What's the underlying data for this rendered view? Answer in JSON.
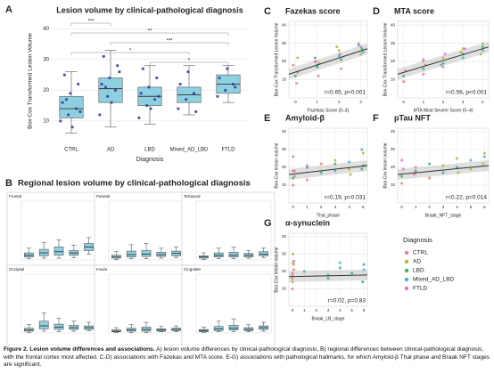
{
  "figure": {
    "caption_title": "Figure 2. Lesion volume differences and associations.",
    "caption_text": "A) lesion volume differences by clinical-pathological diagnosis, B) regional differences between clinical-pathological diagnosis, with the frontal cortex most affected. C-D) associations with Fazekas and MTA score. E-G) associations with pathological hallmarks, for which Amyloid-β Thal phase and Braak NFT stages are significant.",
    "group_b": {
      "panel": "B",
      "title": "Regional lesion volume by clinical-pathological diagnosis"
    }
  },
  "legend": {
    "title": "Diagnosis",
    "series": [
      {
        "name": "CTRL",
        "color": "#f08080"
      },
      {
        "name": "AD",
        "color": "#b5b535"
      },
      {
        "name": "LBD",
        "color": "#3cb371"
      },
      {
        "name": "Mixed_AD_LBD",
        "color": "#45b0d8"
      },
      {
        "name": "FTLD",
        "color": "#e070e0"
      }
    ]
  },
  "chart_data": [
    {
      "type": "box",
      "panel": "A",
      "title": "Lesion volume by clinical-pathological diagnosis",
      "y_label": "Box-Cox Transformed Lesion Volume",
      "x_label": "Diagnosis",
      "categories": [
        "CTRL",
        "AD",
        "LBD",
        "Mixed_AD_LBD",
        "FTLD"
      ],
      "color": "#8fd0e0",
      "point_color": "#2e3a9e",
      "boxes": [
        [
          6,
          11,
          14,
          18,
          26
        ],
        [
          8,
          16,
          20.5,
          24,
          33
        ],
        [
          9,
          15,
          18,
          21,
          28
        ],
        [
          12,
          16,
          18.5,
          21,
          28
        ],
        [
          16,
          19,
          22,
          25,
          28
        ]
      ],
      "points": [
        [
          10,
          12,
          14,
          16,
          19,
          22,
          25,
          8,
          13,
          17
        ],
        [
          12,
          18,
          20,
          22,
          24,
          28,
          31,
          16,
          26,
          21
        ],
        [
          11,
          15,
          17,
          19,
          21,
          24,
          27,
          14,
          18
        ],
        [
          14,
          17,
          19,
          22,
          26,
          13
        ],
        [
          18,
          20,
          22,
          24,
          27,
          21
        ]
      ],
      "ylim": [
        3,
        43
      ],
      "yticks": [
        10,
        20,
        30,
        40
      ],
      "grid": true,
      "significance": [
        {
          "pair": [
            "CTRL",
            "AD"
          ],
          "label": "***"
        },
        {
          "pair": [
            "CTRL",
            "FTLD"
          ],
          "label": "**"
        },
        {
          "pair": [
            "AD",
            "FTLD"
          ],
          "label": "***"
        },
        {
          "pair": [
            "CTRL",
            "Mixed_AD_LBD"
          ],
          "label": "*"
        },
        {
          "pair": [
            "LBD",
            "FTLD"
          ],
          "label": "*"
        }
      ]
    },
    {
      "type": "box",
      "title": "Frontal",
      "color": "#8fd0e0",
      "ylim": [
        0,
        100
      ],
      "boxes": [
        [
          2,
          5,
          8,
          12,
          20
        ],
        [
          3,
          7,
          12,
          18,
          30
        ],
        [
          3,
          8,
          14,
          22,
          34
        ],
        [
          4,
          8,
          12,
          16,
          25
        ],
        [
          10,
          16,
          22,
          28,
          38
        ]
      ]
    },
    {
      "type": "box",
      "title": "Parietal",
      "color": "#8fd0e0",
      "ylim": [
        0,
        100
      ],
      "boxes": [
        [
          1,
          3,
          5,
          8,
          14
        ],
        [
          2,
          5,
          9,
          15,
          26
        ],
        [
          2,
          6,
          10,
          16,
          28
        ],
        [
          3,
          6,
          9,
          13,
          20
        ],
        [
          4,
          7,
          11,
          15,
          22
        ]
      ]
    },
    {
      "type": "box",
      "title": "Temporal",
      "color": "#8fd0e0",
      "ylim": [
        0,
        100
      ],
      "boxes": [
        [
          1,
          3,
          5,
          7,
          12
        ],
        [
          2,
          5,
          8,
          12,
          20
        ],
        [
          2,
          5,
          8,
          13,
          22
        ],
        [
          3,
          5,
          8,
          11,
          16
        ],
        [
          4,
          7,
          10,
          14,
          20
        ]
      ]
    },
    {
      "type": "box",
      "title": "Occipital",
      "color": "#8fd0e0",
      "ylim": [
        0,
        100
      ],
      "boxes": [
        [
          1,
          3,
          5,
          8,
          14
        ],
        [
          3,
          7,
          12,
          20,
          34
        ],
        [
          2,
          6,
          10,
          15,
          25
        ],
        [
          3,
          6,
          9,
          13,
          20
        ],
        [
          4,
          6,
          9,
          12,
          18
        ]
      ]
    },
    {
      "type": "box",
      "title": "Insula",
      "color": "#8fd0e0",
      "ylim": [
        0,
        100
      ],
      "boxes": [
        [
          1,
          2,
          3,
          5,
          9
        ],
        [
          1,
          3,
          5,
          8,
          14
        ],
        [
          1,
          3,
          6,
          10,
          18
        ],
        [
          2,
          3,
          5,
          7,
          11
        ],
        [
          2,
          4,
          6,
          8,
          12
        ]
      ]
    },
    {
      "type": "box",
      "title": "Cingulate",
      "color": "#8fd0e0",
      "ylim": [
        0,
        100
      ],
      "boxes": [
        [
          1,
          2,
          4,
          6,
          10
        ],
        [
          2,
          4,
          7,
          11,
          20
        ],
        [
          2,
          5,
          8,
          13,
          24
        ],
        [
          2,
          4,
          6,
          9,
          14
        ],
        [
          3,
          6,
          9,
          12,
          18
        ]
      ]
    },
    {
      "type": "scatter",
      "panel": "C",
      "title": "Fazekas score",
      "y_label": "Box-Cox Transformed Lesion Volume",
      "x_label": "Fazekas Score (0–3)",
      "annotation": "r=0.65, p<0.001",
      "xlim": [
        -0.3,
        3.3
      ],
      "xticks": [
        0,
        1,
        2,
        3
      ],
      "ylim": [
        0,
        42
      ],
      "yticks": [
        10,
        20,
        30,
        40
      ],
      "grid": true,
      "fit": {
        "x": [
          -0.3,
          3.3
        ],
        "y": [
          13,
          27
        ]
      },
      "points": [
        {
          "x": [
            0.05,
            0.1,
            -0.1,
            1.05,
            0.95,
            2.1
          ],
          "y": [
            8,
            14,
            18,
            12,
            20,
            16
          ]
        },
        {
          "x": [
            0.1,
            1.1,
            2.0,
            2.9,
            3.0,
            1.9
          ],
          "y": [
            22,
            19,
            26,
            30,
            24,
            28
          ]
        },
        {
          "x": [
            0,
            1,
            2.1,
            3.05,
            0.9
          ],
          "y": [
            12,
            17,
            21,
            27,
            22
          ]
        },
        {
          "x": [
            1,
            2,
            3.1,
            2.9
          ],
          "y": [
            18,
            23,
            25,
            29
          ]
        },
        {
          "x": [
            0.9,
            2.05,
            3
          ],
          "y": [
            20,
            24,
            28
          ]
        }
      ]
    },
    {
      "type": "scatter",
      "panel": "D",
      "title": "MTA score",
      "y_label": "Box-Cox Transformed Lesion Volume",
      "x_label": "MTA Most Severe Score (0–4)",
      "annotation": "r=0.56, p<0.001",
      "xlim": [
        -0.3,
        4.3
      ],
      "xticks": [
        0,
        1,
        2,
        3,
        4
      ],
      "ylim": [
        0,
        42
      ],
      "yticks": [
        10,
        20,
        30,
        40
      ],
      "grid": true,
      "fit": {
        "x": [
          -0.3,
          4.3
        ],
        "y": [
          13,
          28
        ]
      },
      "points": [
        {
          "x": [
            0,
            0.1,
            1,
            1.1,
            2
          ],
          "y": [
            9,
            15,
            13,
            18,
            17
          ]
        },
        {
          "x": [
            1,
            2,
            3,
            4,
            3.9,
            2.9
          ],
          "y": [
            20,
            22,
            27,
            30,
            24,
            25
          ]
        },
        {
          "x": [
            0,
            1,
            2,
            3,
            4
          ],
          "y": [
            12,
            16,
            19,
            24,
            28
          ]
        },
        {
          "x": [
            1.9,
            3,
            4
          ],
          "y": [
            18,
            22,
            26
          ]
        },
        {
          "x": [
            1,
            2.1,
            3.1
          ],
          "y": [
            21,
            24,
            27
          ]
        }
      ]
    },
    {
      "type": "scatter",
      "panel": "E",
      "title": "Amyloid-β",
      "y_label": "Box-Cox lesion volume",
      "x_label": "Thal_phase",
      "annotation": "r=0.19, p=0.031",
      "xlim": [
        -0.3,
        5.3
      ],
      "xticks": [
        0,
        1,
        2,
        3,
        4,
        5
      ],
      "ylim": [
        0,
        42
      ],
      "yticks": [
        10,
        20,
        30,
        40
      ],
      "grid": true,
      "fit": {
        "x": [
          -0.3,
          5.3
        ],
        "y": [
          16,
          21
        ]
      },
      "points": [
        {
          "x": [
            0,
            0.1,
            0,
            1,
            2
          ],
          "y": [
            10,
            15,
            18,
            13,
            22
          ]
        },
        {
          "x": [
            3,
            4,
            5,
            5.1,
            4.1
          ],
          "y": [
            24,
            19,
            28,
            21,
            16
          ]
        },
        {
          "x": [
            0,
            1,
            2,
            3,
            4.9
          ],
          "y": [
            14,
            20,
            17,
            22,
            19
          ]
        },
        {
          "x": [
            3,
            4,
            5,
            4.9
          ],
          "y": [
            18,
            23,
            21,
            30
          ]
        },
        {
          "x": [
            0,
            1,
            0.1
          ],
          "y": [
            26,
            21,
            18
          ]
        }
      ]
    },
    {
      "type": "scatter",
      "panel": "F",
      "title": "pTau NFT",
      "y_label": "Box-Cox lesion volume",
      "x_label": "Braak_NFT_stage",
      "annotation": "r=0.22, p=0.014",
      "xlim": [
        -0.3,
        6.3
      ],
      "xticks": [
        0,
        1,
        2,
        3,
        4,
        5,
        6
      ],
      "ylim": [
        0,
        42
      ],
      "yticks": [
        10,
        20,
        30,
        40
      ],
      "grid": true,
      "fit": {
        "x": [
          -0.3,
          6.3
        ],
        "y": [
          16,
          21
        ]
      },
      "points": [
        {
          "x": [
            0,
            0.9,
            1,
            2
          ],
          "y": [
            11,
            16,
            20,
            14
          ]
        },
        {
          "x": [
            3,
            4,
            5,
            6,
            5.9,
            4.1
          ],
          "y": [
            21,
            25,
            19,
            28,
            22,
            17
          ]
        },
        {
          "x": [
            0,
            1,
            2,
            3,
            4
          ],
          "y": [
            15,
            18,
            22,
            17,
            20
          ]
        },
        {
          "x": [
            4,
            5,
            6
          ],
          "y": [
            20,
            24,
            26
          ]
        },
        {
          "x": [
            0,
            0.1,
            1
          ],
          "y": [
            24,
            19,
            17
          ]
        }
      ]
    },
    {
      "type": "scatter",
      "panel": "G",
      "title": "α-synuclein",
      "y_label": "Box-Cox lesion volume",
      "x_label": "Braak_LB_stage",
      "annotation": "r=0.02, p=0.83",
      "xlim": [
        -0.3,
        6.3
      ],
      "xticks": [
        0,
        1,
        2,
        3,
        4,
        5,
        6
      ],
      "ylim": [
        0,
        42
      ],
      "yticks": [
        10,
        20,
        30,
        40
      ],
      "grid": true,
      "fit": {
        "x": [
          -0.3,
          6.3
        ],
        "y": [
          17,
          18
        ]
      },
      "points": [
        {
          "x": [
            0,
            0,
            0.1,
            0.05
          ],
          "y": [
            10,
            16,
            21,
            25
          ]
        },
        {
          "x": [
            0,
            0.1,
            0,
            0.05,
            1
          ],
          "y": [
            18,
            24,
            14,
            30,
            20
          ]
        },
        {
          "x": [
            3,
            4,
            5,
            6,
            5.9
          ],
          "y": [
            16,
            22,
            19,
            24,
            14
          ]
        },
        {
          "x": [
            1,
            3,
            4,
            6
          ],
          "y": [
            20,
            18,
            25,
            21
          ]
        },
        {
          "x": [
            0,
            0.1
          ],
          "y": [
            19,
            26
          ]
        }
      ]
    }
  ]
}
